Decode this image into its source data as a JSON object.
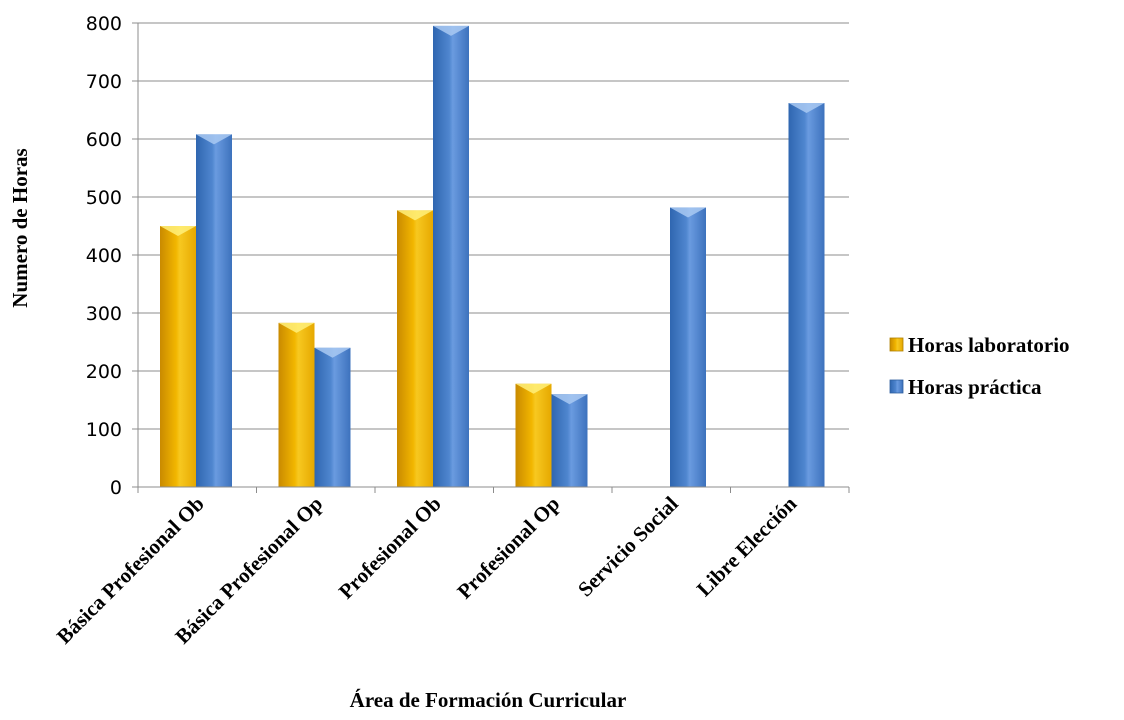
{
  "chart_data": {
    "type": "bar",
    "title": "",
    "xlabel": "Área de Formación Curricular",
    "ylabel": "Numero de Horas",
    "ylim": [
      0,
      800
    ],
    "yticks": [
      0,
      100,
      200,
      300,
      400,
      500,
      600,
      700,
      800
    ],
    "grid": true,
    "legend_position": "right",
    "categories": [
      "Básica Profesional Ob",
      "Básica Profesional Op",
      "Profesional Ob",
      "Profesional Op",
      "Servicio Social",
      "Libre Elección"
    ],
    "series": [
      {
        "name": "Horas laboratorio",
        "color": "#f0b800",
        "values": [
          450,
          283,
          477,
          178,
          0,
          0
        ]
      },
      {
        "name": "Horas práctica",
        "color": "#4f85cc",
        "values": [
          608,
          240,
          795,
          160,
          482,
          662
        ]
      }
    ]
  }
}
